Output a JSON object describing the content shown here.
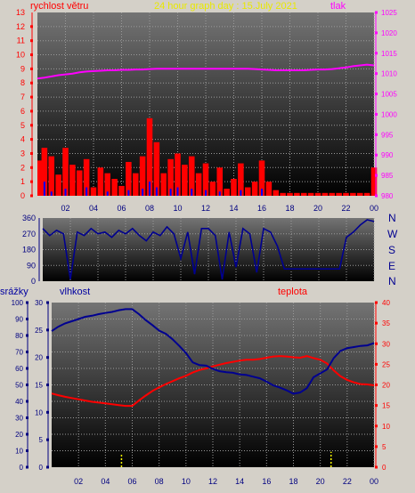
{
  "header": {
    "left_label": "rychlost větru",
    "title": "24 hour graph day : 15.July 2021",
    "right_label": "tlak"
  },
  "bottom_header": {
    "rain_label": "srážky",
    "humidity_label": "vlhkost",
    "temperature_label": "teplota"
  },
  "compass": [
    "N",
    "W",
    "S",
    "E",
    "N"
  ],
  "colors": {
    "wind": "#ff0000",
    "gust": "#0000ff",
    "pressure": "#ff00ff",
    "direction": "#000090",
    "humidity": "#000090",
    "temperature": "#ff0000",
    "rain": "#ffff00",
    "left_axis_top": "#ff0000",
    "right_axis_top": "#ff00ff",
    "bg_top": "#747474",
    "bg_bottom": "#000000"
  },
  "chart_data": [
    {
      "type": "bar",
      "name": "wind-and-pressure",
      "x_ticks": [
        "02",
        "04",
        "06",
        "08",
        "10",
        "12",
        "14",
        "16",
        "18",
        "20",
        "22",
        "00"
      ],
      "y_left_ticks": [
        "0",
        "1",
        "2",
        "3",
        "4",
        "5",
        "6",
        "7",
        "8",
        "9",
        "10",
        "11",
        "12"
      ],
      "y_left_top": "13",
      "y_right_ticks": [
        "980",
        "985",
        "990",
        "995",
        "1000",
        "1005",
        "1010",
        "1015",
        "1020",
        "1025"
      ],
      "ylim_left": [
        0,
        13
      ],
      "ylim_right": [
        980,
        1025
      ],
      "hours": [
        0,
        0.5,
        1,
        1.5,
        2,
        2.5,
        3,
        3.5,
        4,
        4.5,
        5,
        5.5,
        6,
        6.5,
        7,
        7.5,
        8,
        8.5,
        9,
        9.5,
        10,
        10.5,
        11,
        11.5,
        12,
        12.5,
        13,
        13.5,
        14,
        14.5,
        15,
        15.5,
        16,
        16.5,
        17,
        17.5,
        18,
        18.5,
        19,
        19.5,
        20,
        20.5,
        21,
        21.5,
        22,
        22.5,
        23,
        23.5,
        24
      ],
      "wind": [
        2.5,
        3.4,
        2.8,
        1.5,
        3.4,
        2.2,
        1.8,
        2.6,
        0.6,
        2.0,
        1.6,
        1.2,
        0.7,
        2.4,
        1.6,
        2.8,
        5.5,
        3.8,
        1.6,
        2.6,
        3.0,
        2.2,
        2.8,
        1.6,
        2.3,
        1.0,
        2.0,
        0.5,
        1.2,
        2.3,
        0.6,
        1.0,
        2.5,
        1.0,
        0.4,
        0.2,
        0.2,
        0.2,
        0.2,
        0.2,
        0.2,
        0.2,
        0.2,
        0.2,
        0.2,
        0.2,
        0.2,
        0.2,
        2.0
      ],
      "gust": [
        0.0,
        1.0,
        0.3,
        0.0,
        0.5,
        0.0,
        0.0,
        0.6,
        0.0,
        0.0,
        0.3,
        0.0,
        0.0,
        0.4,
        0.0,
        0.5,
        1.0,
        0.6,
        0.0,
        0.5,
        0.6,
        0.0,
        0.5,
        0.0,
        0.4,
        0.0,
        0.3,
        0.0,
        0.0,
        0.4,
        0.0,
        0.0,
        0.5,
        0.0,
        0.0,
        0.0,
        0.0,
        0.0,
        0.0,
        0.0,
        0.0,
        0.0,
        0.0,
        0.0,
        0.0,
        0.0,
        0.0,
        0.0,
        0.0
      ],
      "pressure": [
        1008.8,
        1009.0,
        1009.3,
        1009.6,
        1009.8,
        1010.0,
        1010.3,
        1010.5,
        1010.6,
        1010.7,
        1010.8,
        1010.8,
        1010.9,
        1010.9,
        1011.0,
        1011.0,
        1011.1,
        1011.2,
        1011.2,
        1011.2,
        1011.2,
        1011.2,
        1011.2,
        1011.2,
        1011.2,
        1011.2,
        1011.2,
        1011.2,
        1011.2,
        1011.2,
        1011.2,
        1011.1,
        1011.0,
        1010.9,
        1010.8,
        1010.8,
        1010.8,
        1010.8,
        1010.8,
        1010.9,
        1011.0,
        1011.0,
        1011.1,
        1011.3,
        1011.5,
        1011.8,
        1012.0,
        1012.2,
        1012.0
      ]
    },
    {
      "type": "line",
      "name": "wind-direction",
      "y_ticks": [
        "0",
        "90",
        "180",
        "270",
        "360"
      ],
      "ylim": [
        0,
        360
      ],
      "hours": [
        0,
        0.5,
        1,
        1.5,
        2,
        2.5,
        3,
        3.5,
        4,
        4.5,
        5,
        5.5,
        6,
        6.5,
        7,
        7.5,
        8,
        8.5,
        9,
        9.5,
        10,
        10.5,
        11,
        11.5,
        12,
        12.5,
        13,
        13.5,
        14,
        14.5,
        15,
        15.5,
        16,
        16.5,
        17,
        17.5,
        18,
        18.5,
        19,
        19.5,
        20,
        20.5,
        21,
        21.5,
        22,
        22.5,
        23,
        23.5,
        24
      ],
      "direction": [
        300,
        260,
        290,
        270,
        10,
        280,
        260,
        300,
        270,
        280,
        250,
        290,
        270,
        300,
        260,
        230,
        280,
        260,
        310,
        270,
        130,
        280,
        40,
        300,
        300,
        260,
        10,
        280,
        80,
        300,
        270,
        50,
        300,
        280,
        200,
        70,
        70,
        70,
        70,
        70,
        70,
        70,
        70,
        70,
        250,
        280,
        320,
        350,
        340
      ]
    },
    {
      "type": "line",
      "name": "humidity-temperature-rain",
      "x_ticks": [
        "02",
        "04",
        "06",
        "08",
        "10",
        "12",
        "14",
        "16",
        "18",
        "20",
        "22",
        "00"
      ],
      "y_rain_ticks": [
        "0",
        "10",
        "20",
        "30",
        "40",
        "50",
        "60",
        "70",
        "80",
        "90",
        "100"
      ],
      "y_hum_ticks": [
        "0",
        "5",
        "10",
        "15",
        "20",
        "25",
        "30"
      ],
      "y_temp_ticks": [
        "0",
        "5",
        "10",
        "15",
        "20",
        "25",
        "30",
        "35",
        "40"
      ],
      "ylim_rain": [
        0,
        100
      ],
      "ylim_humidity": [
        0,
        30
      ],
      "ylim_temperature": [
        0,
        40
      ],
      "hours": [
        0,
        0.5,
        1,
        1.5,
        2,
        2.5,
        3,
        3.5,
        4,
        4.5,
        5,
        5.5,
        6,
        6.5,
        7,
        7.5,
        8,
        8.5,
        9,
        9.5,
        10,
        10.5,
        11,
        11.5,
        12,
        12.5,
        13,
        13.5,
        14,
        14.5,
        15,
        15.5,
        16,
        16.5,
        17,
        17.5,
        18,
        18.5,
        19,
        19.5,
        20,
        20.5,
        21,
        21.5,
        22,
        22.5,
        23,
        23.5,
        24
      ],
      "humidity": [
        24.8,
        25.6,
        26.2,
        26.6,
        27.0,
        27.4,
        27.6,
        27.9,
        28.1,
        28.3,
        28.6,
        28.8,
        28.8,
        27.9,
        26.8,
        25.9,
        24.9,
        24.3,
        23.3,
        22.1,
        20.8,
        19.1,
        18.6,
        18.5,
        17.9,
        17.5,
        17.3,
        17.2,
        16.9,
        16.8,
        16.5,
        16.2,
        15.6,
        14.9,
        14.5,
        14.0,
        13.4,
        13.6,
        14.4,
        16.4,
        17.1,
        17.8,
        19.9,
        21.2,
        21.7,
        21.9,
        22.1,
        22.2,
        22.6
      ],
      "temperature": [
        17.9,
        17.5,
        17.1,
        16.8,
        16.5,
        16.2,
        15.9,
        15.7,
        15.5,
        15.3,
        15.1,
        14.9,
        14.9,
        16.2,
        17.4,
        18.5,
        19.4,
        20.2,
        20.9,
        21.6,
        22.2,
        23.0,
        23.6,
        24.0,
        24.5,
        24.9,
        25.3,
        25.6,
        25.9,
        26.1,
        26.1,
        26.3,
        26.6,
        26.9,
        27.0,
        26.9,
        26.7,
        26.6,
        27.0,
        26.5,
        26.1,
        25.2,
        23.5,
        22.1,
        21.2,
        20.6,
        20.2,
        20.1,
        19.9
      ],
      "rain_events": [
        {
          "hour": 5.2,
          "amount": 4
        },
        {
          "hour": 20.8,
          "amount": 5
        }
      ]
    }
  ]
}
